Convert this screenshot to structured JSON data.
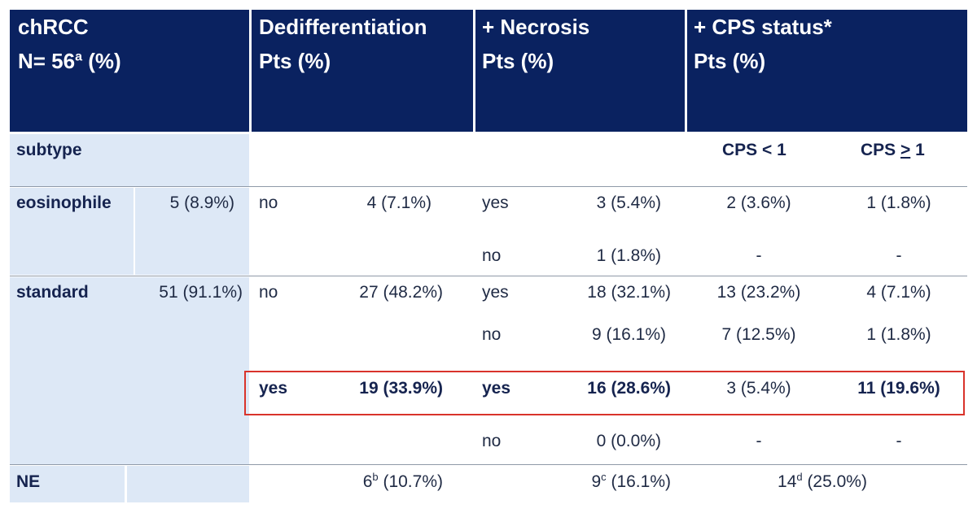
{
  "header": {
    "col1_line1": "chRCC",
    "col1_line2_pre": "N= 56",
    "col1_line2_sup": "a",
    "col1_line2_post": " (%)",
    "col2_line1": "Dedifferentiation",
    "col2_line2": "Pts (%)",
    "col3_line1": "+ Necrosis",
    "col3_line2": "Pts (%)",
    "col4_line1": "+ CPS status*",
    "col4_line2": "Pts (%)"
  },
  "subtype_row": {
    "label": "subtype",
    "cps_lt": "CPS < 1",
    "cps_ge_pre": "CPS ",
    "cps_ge_sym": ">",
    "cps_ge_post": " 1"
  },
  "eosinophile": {
    "label": "eosinophile",
    "n": "5 (8.9%)",
    "dediff": "no",
    "dediff_n": "4 (7.1%)",
    "rows": [
      {
        "necrosis": "yes",
        "necrosis_n": "3 (5.4%)",
        "cps_lt": "2 (3.6%)",
        "cps_ge": "1 (1.8%)"
      },
      {
        "necrosis": "no",
        "necrosis_n": "1 (1.8%)",
        "cps_lt": "-",
        "cps_ge": "-"
      }
    ]
  },
  "standard": {
    "label": "standard",
    "n": "51 (91.1%)",
    "groups": [
      {
        "dediff": "no",
        "dediff_n": "27 (48.2%)",
        "rows": [
          {
            "necrosis": "yes",
            "necrosis_n": "18 (32.1%)",
            "cps_lt": "13 (23.2%)",
            "cps_ge": "4 (7.1%)"
          },
          {
            "necrosis": "no",
            "necrosis_n": "9 (16.1%)",
            "cps_lt": "7 (12.5%)",
            "cps_ge": "1 (1.8%)"
          }
        ]
      },
      {
        "dediff": "yes",
        "dediff_n": "19 (33.9%)",
        "rows": [
          {
            "necrosis": "yes",
            "necrosis_n": "16 (28.6%)",
            "cps_lt": "3 (5.4%)",
            "cps_ge": "11 (19.6%)"
          },
          {
            "necrosis": "no",
            "necrosis_n": "0 (0.0%)",
            "cps_lt": "-",
            "cps_ge": "-"
          }
        ]
      }
    ]
  },
  "ne_row": {
    "label": "NE",
    "dediff_pre": "6",
    "dediff_sup": "b",
    "dediff_post": " (10.7%)",
    "necrosis_pre": "9",
    "necrosis_sup": "c",
    "necrosis_post": " (16.1%)",
    "cps_pre": "14",
    "cps_sup": "d",
    "cps_post": " (25.0%)"
  },
  "colors": {
    "header_bg": "#0a2260",
    "shade_bg": "#dde8f6",
    "highlight_border": "#d9332b"
  }
}
